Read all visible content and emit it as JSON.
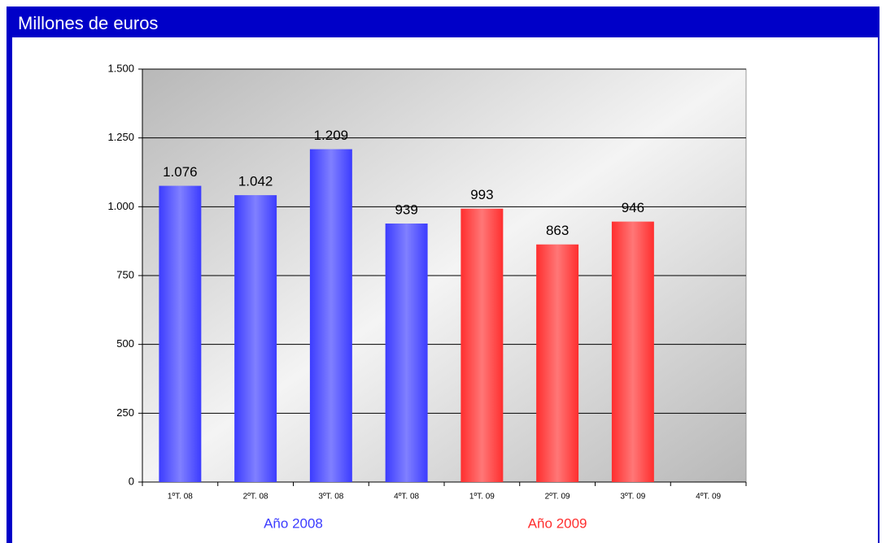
{
  "chart_data": {
    "type": "bar",
    "title": "Millones de euros",
    "categories": [
      "1ºT. 08",
      "2ºT. 08",
      "3ºT. 08",
      "4ºT. 08",
      "1ºT. 09",
      "2ºT. 09",
      "3ºT. 09",
      "4ºT. 09"
    ],
    "series": [
      {
        "name": "Año 2008",
        "color": "#3c3cff",
        "values": [
          1076,
          1042,
          1209,
          939,
          null,
          null,
          null,
          null
        ],
        "value_labels": [
          "1.076",
          "1.042",
          "1.209",
          "939",
          null,
          null,
          null,
          null
        ]
      },
      {
        "name": "Año 2009",
        "color": "#ff2e2e",
        "values": [
          null,
          null,
          null,
          null,
          993,
          863,
          946,
          null
        ],
        "value_labels": [
          null,
          null,
          null,
          null,
          "993",
          "863",
          "946",
          null
        ]
      }
    ],
    "ylim": [
      0,
      1500
    ],
    "yticks": [
      0,
      250,
      500,
      750,
      {
        "value": 1000,
        "label": "1.000"
      },
      {
        "value": 1250,
        "label": "1.250"
      },
      {
        "value": 1500,
        "label": "1.500"
      }
    ],
    "grid": true
  }
}
